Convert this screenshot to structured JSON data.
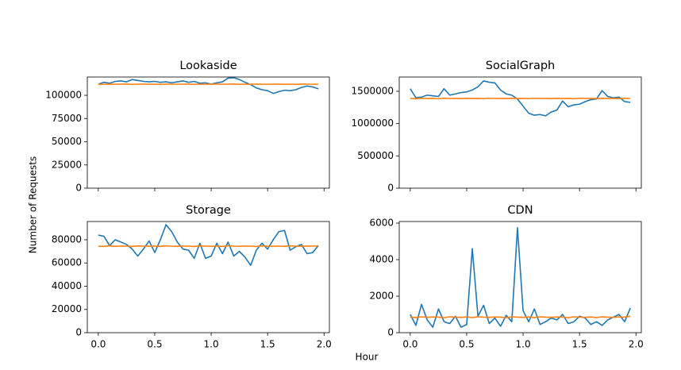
{
  "figure": {
    "xlabel": "Hour",
    "ylabel": "Number of Requests"
  },
  "chart_data": [
    {
      "type": "line",
      "title": "Lookaside",
      "x": [
        0,
        0.05,
        0.1,
        0.15,
        0.2,
        0.25,
        0.3,
        0.35,
        0.4,
        0.45,
        0.5,
        0.55,
        0.6,
        0.65,
        0.7,
        0.75,
        0.8,
        0.85,
        0.9,
        0.95,
        1.0,
        1.05,
        1.1,
        1.15,
        1.2,
        1.25,
        1.3,
        1.35,
        1.4,
        1.45,
        1.5,
        1.55,
        1.6,
        1.65,
        1.7,
        1.75,
        1.8,
        1.85,
        1.9,
        1.95
      ],
      "series": [
        {
          "color": "#1f77b4",
          "values": [
            112000,
            114000,
            113000,
            115000,
            115500,
            114500,
            117000,
            116000,
            115000,
            114500,
            115000,
            114000,
            114500,
            113500,
            114500,
            115500,
            114000,
            115000,
            113000,
            113500,
            112000,
            113500,
            114500,
            118500,
            119000,
            117000,
            114000,
            111500,
            108000,
            106000,
            105000,
            102000,
            104000,
            105500,
            105000,
            106000,
            108500,
            110000,
            109000,
            107000
          ]
        },
        {
          "color": "#ff7f0e",
          "values": [
            112000,
            111800,
            112100,
            111900,
            112000,
            112200,
            111800,
            112000,
            112100,
            111900,
            112000,
            111800,
            112100,
            112000,
            111900,
            112000,
            112100,
            111800,
            112000,
            111900,
            112000,
            112100,
            111900,
            112000,
            112200,
            111800,
            112000,
            111900,
            112100,
            112000,
            111800,
            112000,
            112100,
            111900,
            112000,
            111800,
            112100,
            112000,
            111900,
            112000
          ]
        }
      ],
      "xlim": [
        -0.0975,
        2.0475
      ],
      "xticks": [
        0,
        0.5,
        1,
        1.5,
        2
      ],
      "xticklabels": false,
      "ylim": [
        0,
        119700
      ],
      "yticks": [
        0,
        25000,
        50000,
        75000,
        100000
      ]
    },
    {
      "type": "line",
      "title": "SocialGraph",
      "x": [
        0,
        0.05,
        0.1,
        0.15,
        0.2,
        0.25,
        0.3,
        0.35,
        0.4,
        0.45,
        0.5,
        0.55,
        0.6,
        0.65,
        0.7,
        0.75,
        0.8,
        0.85,
        0.9,
        0.95,
        1.0,
        1.05,
        1.1,
        1.15,
        1.2,
        1.25,
        1.3,
        1.35,
        1.4,
        1.45,
        1.5,
        1.55,
        1.6,
        1.65,
        1.7,
        1.75,
        1.8,
        1.85,
        1.9,
        1.95
      ],
      "series": [
        {
          "color": "#1f77b4",
          "values": [
            1540000,
            1400000,
            1410000,
            1440000,
            1430000,
            1420000,
            1540000,
            1440000,
            1460000,
            1480000,
            1490000,
            1520000,
            1570000,
            1660000,
            1640000,
            1630000,
            1520000,
            1460000,
            1440000,
            1380000,
            1270000,
            1160000,
            1130000,
            1140000,
            1120000,
            1180000,
            1210000,
            1350000,
            1260000,
            1290000,
            1300000,
            1340000,
            1370000,
            1380000,
            1510000,
            1420000,
            1400000,
            1410000,
            1340000,
            1330000
          ]
        },
        {
          "color": "#ff7f0e",
          "values": [
            1390000,
            1385000,
            1392000,
            1388000,
            1390000,
            1386000,
            1392000,
            1389000,
            1390000,
            1387000,
            1391000,
            1388000,
            1390000,
            1386000,
            1392000,
            1389000,
            1390000,
            1387000,
            1391000,
            1388000,
            1390000,
            1386000,
            1392000,
            1389000,
            1390000,
            1387000,
            1391000,
            1388000,
            1390000,
            1386000,
            1392000,
            1389000,
            1390000,
            1387000,
            1391000,
            1388000,
            1390000,
            1386000,
            1392000,
            1389000
          ]
        }
      ],
      "xlim": [
        -0.0975,
        2.0475
      ],
      "xticks": [
        0,
        0.5,
        1,
        1.5,
        2
      ],
      "xticklabels": false,
      "ylim": [
        0,
        1721000
      ],
      "yticks": [
        0,
        500000,
        1000000,
        1500000
      ]
    },
    {
      "type": "line",
      "title": "Storage",
      "x": [
        0,
        0.05,
        0.1,
        0.15,
        0.2,
        0.25,
        0.3,
        0.35,
        0.4,
        0.45,
        0.5,
        0.55,
        0.6,
        0.65,
        0.7,
        0.75,
        0.8,
        0.85,
        0.9,
        0.95,
        1.0,
        1.05,
        1.1,
        1.15,
        1.2,
        1.25,
        1.3,
        1.35,
        1.4,
        1.45,
        1.5,
        1.55,
        1.6,
        1.65,
        1.7,
        1.75,
        1.8,
        1.85,
        1.9,
        1.95
      ],
      "series": [
        {
          "color": "#1f77b4",
          "values": [
            84000,
            83000,
            75000,
            80000,
            78000,
            76000,
            72000,
            66000,
            72000,
            79000,
            69000,
            80000,
            93000,
            87000,
            78000,
            72000,
            71000,
            64000,
            77000,
            64000,
            66000,
            77000,
            68000,
            78000,
            66000,
            70000,
            65000,
            58000,
            71000,
            77000,
            72000,
            80000,
            87000,
            88000,
            71000,
            74000,
            76000,
            68000,
            69000,
            75000
          ]
        },
        {
          "color": "#ff7f0e",
          "values": [
            74500,
            74300,
            74800,
            74400,
            74600,
            74500,
            74200,
            74700,
            74500,
            74400,
            74600,
            74300,
            74800,
            74500,
            74400,
            74600,
            74500,
            74200,
            74700,
            74500,
            74400,
            74600,
            74300,
            74800,
            74500,
            74400,
            74600,
            74500,
            74200,
            74700,
            74500,
            74400,
            74600,
            74300,
            74800,
            74500,
            74400,
            74600,
            74500,
            74700
          ]
        }
      ],
      "xlim": [
        -0.0975,
        2.0475
      ],
      "xticks": [
        {
          "value": 0,
          "label": "0.0"
        },
        {
          "value": 0.5,
          "label": "0.5"
        },
        {
          "value": 1,
          "label": "1.0"
        },
        {
          "value": 1.5,
          "label": "1.5"
        },
        {
          "value": 2,
          "label": "2.0"
        }
      ],
      "ylim": [
        0,
        95700
      ],
      "yticks": [
        0,
        20000,
        40000,
        60000,
        80000
      ]
    },
    {
      "type": "line",
      "title": "CDN",
      "x": [
        0,
        0.05,
        0.1,
        0.15,
        0.2,
        0.25,
        0.3,
        0.35,
        0.4,
        0.45,
        0.5,
        0.55,
        0.6,
        0.65,
        0.7,
        0.75,
        0.8,
        0.85,
        0.9,
        0.95,
        1.0,
        1.05,
        1.1,
        1.15,
        1.2,
        1.25,
        1.3,
        1.35,
        1.4,
        1.45,
        1.5,
        1.55,
        1.6,
        1.65,
        1.7,
        1.75,
        1.8,
        1.85,
        1.9,
        1.95
      ],
      "series": [
        {
          "color": "#1f77b4",
          "values": [
            1000,
            400,
            1550,
            700,
            300,
            1300,
            600,
            500,
            900,
            300,
            450,
            4600,
            900,
            1500,
            500,
            800,
            350,
            950,
            600,
            5750,
            1200,
            600,
            1300,
            450,
            600,
            800,
            700,
            1000,
            500,
            600,
            900,
            800,
            450,
            600,
            400,
            700,
            850,
            1000,
            600,
            1350
          ]
        },
        {
          "color": "#ff7f0e",
          "values": [
            850,
            830,
            870,
            840,
            860,
            850,
            820,
            870,
            850,
            840,
            860,
            830,
            870,
            850,
            840,
            860,
            850,
            820,
            870,
            850,
            840,
            860,
            830,
            870,
            850,
            840,
            860,
            850,
            820,
            870,
            850,
            840,
            860,
            830,
            870,
            850,
            840,
            860,
            850,
            900
          ]
        }
      ],
      "xlim": [
        -0.0975,
        2.0475
      ],
      "xticks": [
        {
          "value": 0,
          "label": "0.0"
        },
        {
          "value": 0.5,
          "label": "0.5"
        },
        {
          "value": 1,
          "label": "1.0"
        },
        {
          "value": 1.5,
          "label": "1.5"
        },
        {
          "value": 2,
          "label": "2.0"
        }
      ],
      "ylim": [
        0,
        6087
      ],
      "yticks": [
        0,
        2000,
        4000,
        6000
      ]
    }
  ]
}
